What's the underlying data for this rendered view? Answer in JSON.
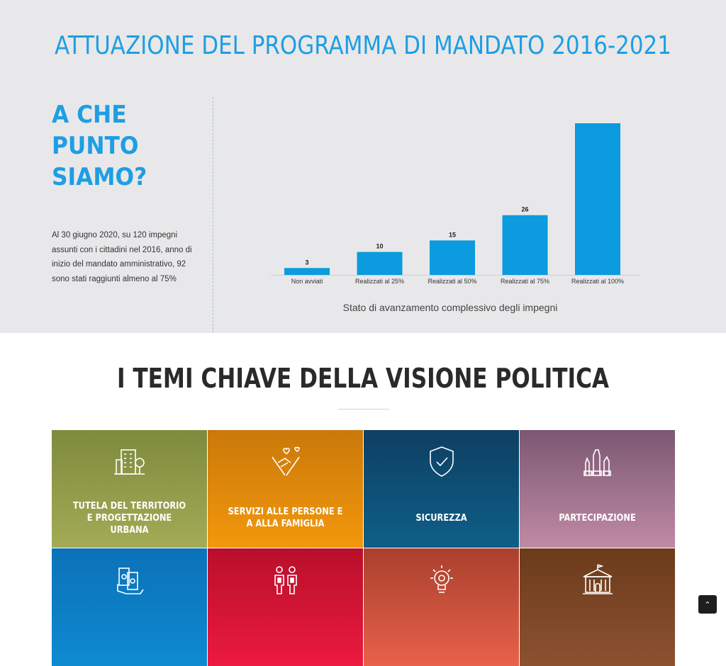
{
  "header": {
    "title": "ATTUAZIONE DEL PROGRAMMA DI MANDATO 2016-2021"
  },
  "status": {
    "title": "A CHE PUNTO SIAMO?",
    "text": "Al 30 giugno 2020, su 120 impegni assunti con i cittadini nel 2016, anno di inizio del mandato amministrativo, 92 sono stati raggiunti almeno al 75%"
  },
  "chart_data": {
    "type": "bar",
    "categories": [
      "Non avviati",
      "Realizzati al 25%",
      "Realizzati al 50%",
      "Realizzati al 75%",
      "Realizzati al 100%"
    ],
    "values": [
      3,
      10,
      15,
      26,
      66
    ],
    "data_labels": [
      "3",
      "10",
      "15",
      "26",
      ""
    ],
    "xlabel": "Stato di avanzamento complessivo degli impegni",
    "ylabel": "",
    "title": "",
    "color": "#0b9bde",
    "ylim": [
      0,
      70
    ],
    "grid": false
  },
  "themes": {
    "title": "I TEMI CHIAVE DELLA VISIONE POLITICA",
    "items": [
      {
        "label": "TUTELA DEL TERRITORIO E PROGETTAZIONE URBANA",
        "icon": "city-buildings-icon"
      },
      {
        "label": "SERVIZI ALLE PERSONE E A ALLA FAMIGLIA",
        "icon": "caring-hands-icon"
      },
      {
        "label": "SICUREZZA",
        "icon": "shield-check-icon"
      },
      {
        "label": "PARTECIPAZIONE",
        "icon": "raised-hands-icon"
      },
      {
        "label": "",
        "icon": "money-hand-icon"
      },
      {
        "label": "",
        "icon": "people-icon"
      },
      {
        "label": "",
        "icon": "lightbulb-gear-icon"
      },
      {
        "label": "",
        "icon": "town-hall-icon"
      }
    ]
  },
  "scroll_top": {
    "icon": "chevron-up-icon",
    "glyph": "⌃"
  }
}
